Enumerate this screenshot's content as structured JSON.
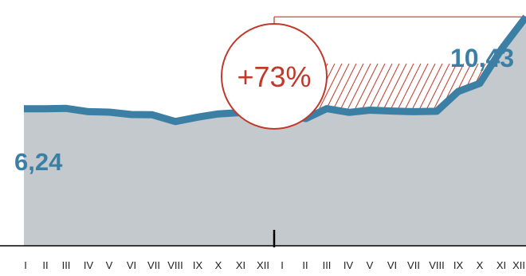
{
  "chart_data": {
    "type": "area",
    "title": "",
    "xlabel": "",
    "ylabel": "",
    "categories": [
      "I",
      "II",
      "III",
      "IV",
      "V",
      "VI",
      "VII",
      "VIII",
      "IX",
      "X",
      "XI",
      "XII",
      "I",
      "II",
      "III",
      "IV",
      "V",
      "VI",
      "VII",
      "VIII",
      "IX",
      "X",
      "XI",
      "XII"
    ],
    "series": [
      {
        "values": [
          6.24,
          6.24,
          6.26,
          6.11,
          6.09,
          5.98,
          5.97,
          5.66,
          5.86,
          6.01,
          6.07,
          6.21,
          6.03,
          5.8,
          6.25,
          6.08,
          6.18,
          6.14,
          6.11,
          6.13,
          7.03,
          7.4,
          9.0,
          10.43
        ]
      }
    ],
    "start_label": "6,24",
    "end_label": "10,43",
    "annotation": {
      "text": "+73%",
      "from_index": 12,
      "to_index": 23
    },
    "ylim": [
      0,
      11.2
    ],
    "colors": {
      "line": "#3c7fa5",
      "area": "#c4c9cd",
      "highlight": "#c0392b",
      "axis": "#000000"
    }
  }
}
